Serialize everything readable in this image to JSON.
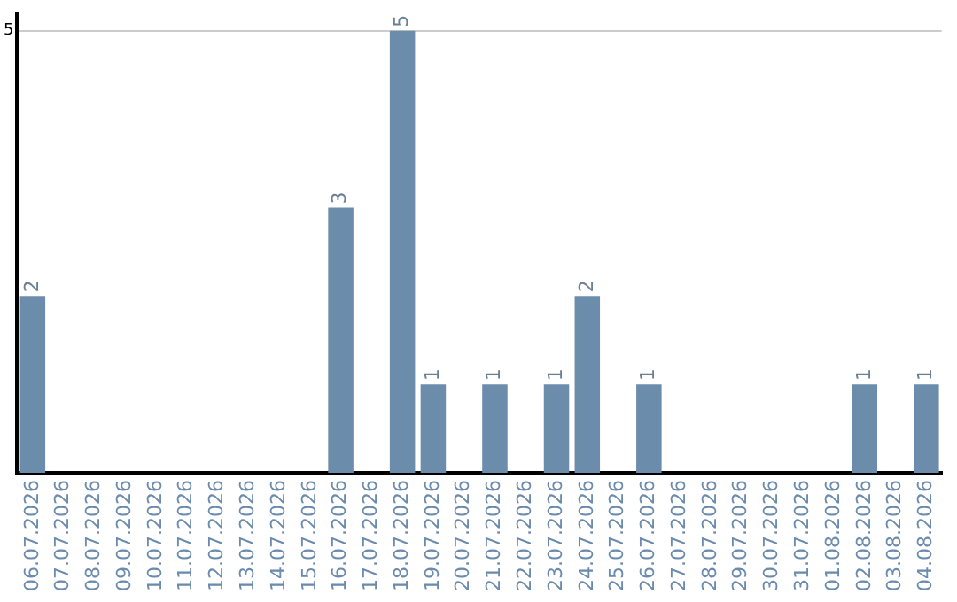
{
  "chart_data": {
    "type": "bar",
    "categories": [
      "06.07.2026",
      "07.07.2026",
      "08.07.2026",
      "09.07.2026",
      "10.07.2026",
      "11.07.2026",
      "12.07.2026",
      "13.07.2026",
      "14.07.2026",
      "15.07.2026",
      "16.07.2026",
      "17.07.2026",
      "18.07.2026",
      "19.07.2026",
      "20.07.2026",
      "21.07.2026",
      "22.07.2026",
      "23.07.2026",
      "24.07.2026",
      "25.07.2026",
      "26.07.2026",
      "27.07.2026",
      "28.07.2026",
      "29.07.2026",
      "30.07.2026",
      "31.07.2026",
      "01.08.2026",
      "02.08.2026",
      "03.08.2026",
      "04.08.2026"
    ],
    "values": [
      2,
      0,
      0,
      0,
      0,
      0,
      0,
      0,
      0,
      0,
      3,
      0,
      5,
      1,
      0,
      1,
      0,
      1,
      2,
      0,
      1,
      0,
      0,
      0,
      0,
      0,
      0,
      1,
      0,
      1
    ],
    "value_labels": [
      "2",
      null,
      null,
      null,
      null,
      null,
      null,
      null,
      null,
      null,
      "3",
      null,
      "5",
      "1",
      null,
      "1",
      null,
      "1",
      "2",
      null,
      "1",
      null,
      null,
      null,
      null,
      null,
      null,
      "1",
      null,
      "1"
    ],
    "color": "#6b8cab",
    "ylim": [
      0,
      5.2
    ],
    "yticks": [
      5
    ],
    "grid": "y",
    "legend": false
  }
}
